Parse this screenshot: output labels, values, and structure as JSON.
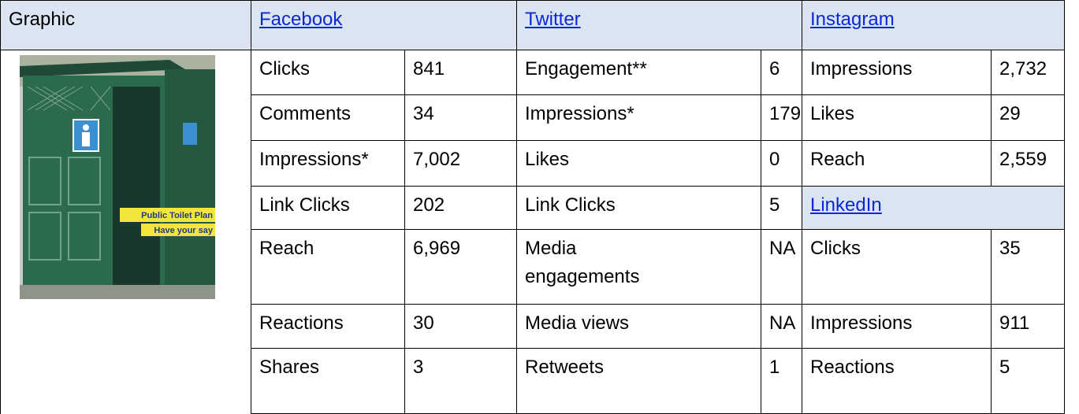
{
  "header": [
    "Graphic",
    "Facebook",
    "Twitter",
    "Instagram"
  ],
  "graphic": {
    "lines": [
      "Public Toilet Plan",
      "Have your say"
    ]
  },
  "facebook": [
    [
      "Clicks",
      "841"
    ],
    [
      "Comments",
      "34"
    ],
    [
      "Impressions*",
      "7,002"
    ],
    [
      "Link Clicks",
      "202"
    ],
    [
      "Reach",
      "6,969"
    ],
    [
      "Reactions",
      "30"
    ],
    [
      "Shares",
      "3"
    ]
  ],
  "twitter": [
    [
      "Engagement**",
      "6"
    ],
    [
      "Impressions*",
      "179"
    ],
    [
      "Likes",
      "0"
    ],
    [
      "Link Clicks",
      "5"
    ],
    [
      "Media engagements",
      "NA"
    ],
    [
      "Media views",
      "NA"
    ],
    [
      "Retweets",
      "1"
    ]
  ],
  "instagram": [
    [
      "Impressions",
      "2,732"
    ],
    [
      "Likes",
      "29"
    ],
    [
      "Reach",
      "2,559"
    ]
  ],
  "linkedin": {
    "title": "LinkedIn",
    "rows": [
      [
        "Clicks",
        "35"
      ],
      [
        "Impressions",
        "911"
      ],
      [
        "Reactions",
        "5"
      ]
    ]
  }
}
